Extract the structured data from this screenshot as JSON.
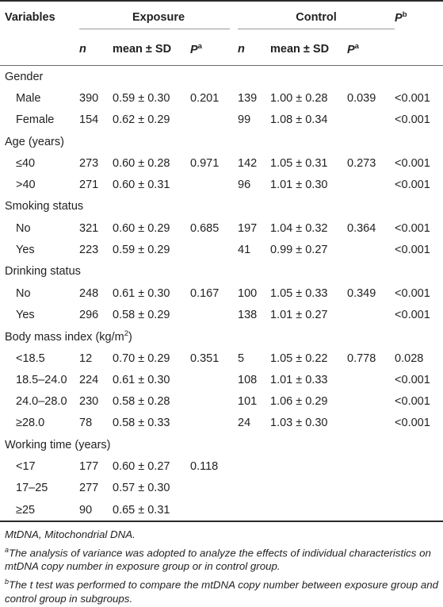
{
  "header": {
    "variables": "Variables",
    "exposure": "Exposure",
    "control": "Control",
    "p_b_letter": "P",
    "p_b_sup": "b",
    "n": "n",
    "mean_sd": "mean ± SD",
    "p_a_letter": "P",
    "p_a_sup": "a"
  },
  "rows": [
    {
      "type": "section",
      "label": "Gender"
    },
    {
      "type": "data",
      "label": "Male",
      "exp_n": "390",
      "exp_mean": "0.59 ± 0.30",
      "exp_p": "0.201",
      "ctl_n": "139",
      "ctl_mean": "1.00 ± 0.28",
      "ctl_p": "0.039",
      "pb": "<0.001"
    },
    {
      "type": "data",
      "label": "Female",
      "exp_n": "154",
      "exp_mean": "0.62 ± 0.29",
      "exp_p": "",
      "ctl_n": "99",
      "ctl_mean": "1.08 ± 0.34",
      "ctl_p": "",
      "pb": "<0.001"
    },
    {
      "type": "section",
      "label": "Age (years)"
    },
    {
      "type": "data",
      "label": "≤40",
      "exp_n": "273",
      "exp_mean": "0.60 ± 0.28",
      "exp_p": "0.971",
      "ctl_n": "142",
      "ctl_mean": "1.05 ± 0.31",
      "ctl_p": "0.273",
      "pb": "<0.001"
    },
    {
      "type": "data",
      "label": ">40",
      "exp_n": "271",
      "exp_mean": "0.60 ± 0.31",
      "exp_p": "",
      "ctl_n": "96",
      "ctl_mean": "1.01 ± 0.30",
      "ctl_p": "",
      "pb": "<0.001"
    },
    {
      "type": "section",
      "label": "Smoking status"
    },
    {
      "type": "data",
      "label": "No",
      "exp_n": "321",
      "exp_mean": "0.60 ± 0.29",
      "exp_p": "0.685",
      "ctl_n": "197",
      "ctl_mean": "1.04 ± 0.32",
      "ctl_p": "0.364",
      "pb": "<0.001"
    },
    {
      "type": "data",
      "label": "Yes",
      "exp_n": "223",
      "exp_mean": "0.59 ± 0.29",
      "exp_p": "",
      "ctl_n": "41",
      "ctl_mean": "0.99 ± 0.27",
      "ctl_p": "",
      "pb": "<0.001"
    },
    {
      "type": "section",
      "label": "Drinking status"
    },
    {
      "type": "data",
      "label": "No",
      "exp_n": "248",
      "exp_mean": "0.61 ± 0.30",
      "exp_p": "0.167",
      "ctl_n": "100",
      "ctl_mean": "1.05 ± 0.33",
      "ctl_p": "0.349",
      "pb": "<0.001"
    },
    {
      "type": "data",
      "label": "Yes",
      "exp_n": "296",
      "exp_mean": "0.58 ± 0.29",
      "exp_p": "",
      "ctl_n": "138",
      "ctl_mean": "1.01 ± 0.27",
      "ctl_p": "",
      "pb": "<0.001"
    },
    {
      "type": "section",
      "label": "Body mass index (kg/m",
      "label_sup": "2",
      "label_tail": ")"
    },
    {
      "type": "data",
      "label": "<18.5",
      "exp_n": "12",
      "exp_mean": "0.70 ± 0.29",
      "exp_p": "0.351",
      "ctl_n": "5",
      "ctl_mean": "1.05 ± 0.22",
      "ctl_p": "0.778",
      "pb": "0.028"
    },
    {
      "type": "data",
      "label": "18.5–24.0",
      "exp_n": "224",
      "exp_mean": "0.61 ± 0.30",
      "exp_p": "",
      "ctl_n": "108",
      "ctl_mean": "1.01 ± 0.33",
      "ctl_p": "",
      "pb": "<0.001"
    },
    {
      "type": "data",
      "label": "24.0–28.0",
      "exp_n": "230",
      "exp_mean": "0.58 ± 0.28",
      "exp_p": "",
      "ctl_n": "101",
      "ctl_mean": "1.06 ± 0.29",
      "ctl_p": "",
      "pb": "<0.001"
    },
    {
      "type": "data",
      "label": "≥28.0",
      "exp_n": "78",
      "exp_mean": "0.58 ± 0.33",
      "exp_p": "",
      "ctl_n": "24",
      "ctl_mean": "1.03 ± 0.30",
      "ctl_p": "",
      "pb": "<0.001"
    },
    {
      "type": "section",
      "label": "Working time (years)"
    },
    {
      "type": "data",
      "label": "<17",
      "exp_n": "177",
      "exp_mean": "0.60 ± 0.27",
      "exp_p": "0.118",
      "ctl_n": "",
      "ctl_mean": "",
      "ctl_p": "",
      "pb": ""
    },
    {
      "type": "data",
      "label": "17–25",
      "exp_n": "277",
      "exp_mean": "0.57 ± 0.30",
      "exp_p": "",
      "ctl_n": "",
      "ctl_mean": "",
      "ctl_p": "",
      "pb": ""
    },
    {
      "type": "data",
      "label": "≥25",
      "exp_n": "90",
      "exp_mean": "0.65 ± 0.31",
      "exp_p": "",
      "ctl_n": "",
      "ctl_mean": "",
      "ctl_p": "",
      "pb": ""
    }
  ],
  "notes": {
    "abbrev": "MtDNA, Mitochondrial DNA.",
    "a_sup": "a",
    "a_text": "The analysis of variance was adopted to analyze the effects of individual characteristics on mtDNA copy number in exposure group or in control group.",
    "b_sup": "b",
    "b_text": "The t test was performed to compare the mtDNA copy number between exposure group and control group in subgroups."
  }
}
